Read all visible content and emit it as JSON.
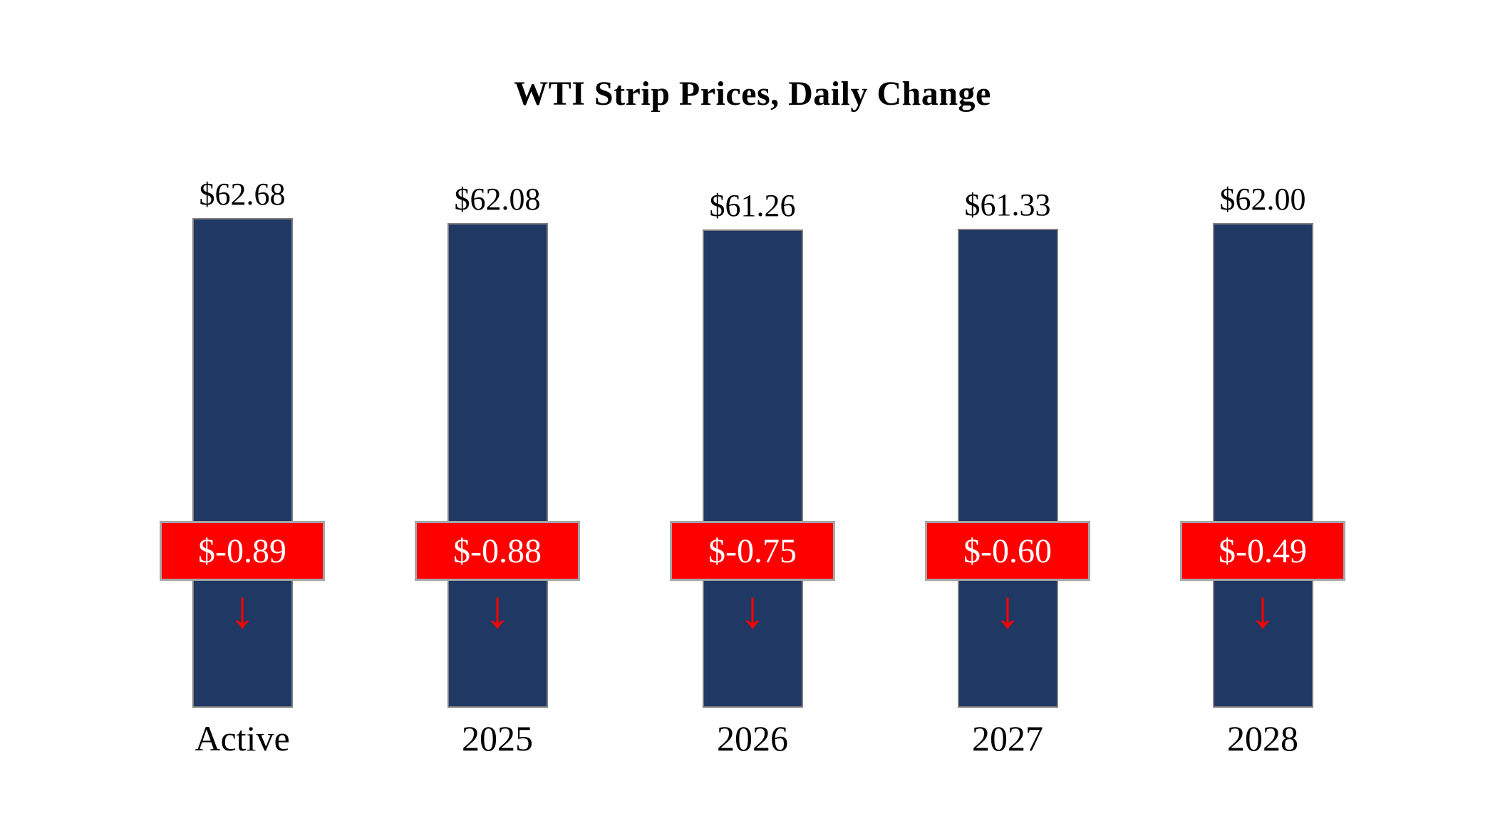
{
  "title": "WTI Strip Prices, Daily Change",
  "chart_data": {
    "type": "bar",
    "categories": [
      "Active",
      "2025",
      "2026",
      "2027",
      "2028"
    ],
    "series": [
      {
        "name": "WTI Strip Price",
        "values": [
          62.68,
          62.08,
          61.26,
          61.33,
          62.0
        ]
      },
      {
        "name": "Daily Change",
        "values": [
          -0.89,
          -0.88,
          -0.75,
          -0.6,
          -0.49
        ]
      }
    ],
    "value_labels": [
      "$62.68",
      "$62.08",
      "$61.26",
      "$61.33",
      "$62.00"
    ],
    "change_labels": [
      "$-0.89",
      "$-0.88",
      "$-0.75",
      "$-0.60",
      "$-0.49"
    ],
    "title": "WTI Strip Prices, Daily Change",
    "xlabel": "",
    "ylabel": "",
    "ylim": [
      0,
      63
    ],
    "grid": false,
    "legend": "none",
    "colors": {
      "bar": "#1f3864",
      "change_box": "#ff0000",
      "change_text": "#ffffff",
      "box_border": "#a6a6a6",
      "arrow": "#ff0000"
    }
  }
}
